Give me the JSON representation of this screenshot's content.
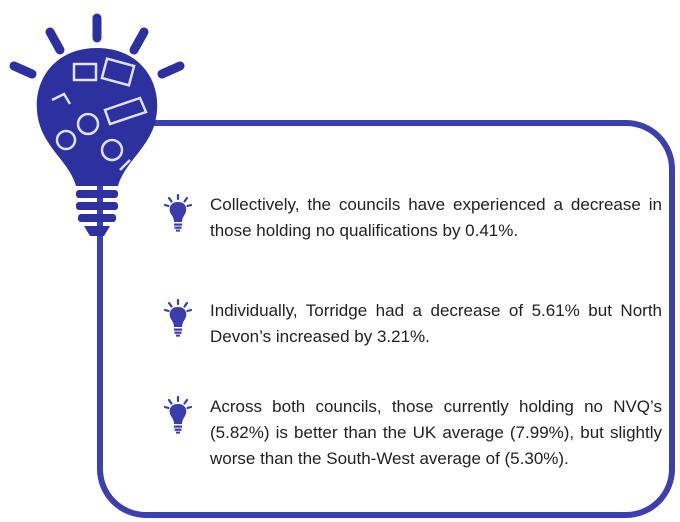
{
  "bullets": [
    "Collectively, the councils have experienced a decrease in those holding no qualifications by 0.41%.",
    "Individually, Torridge had a decrease of 5.61% but North Devon’s increased by 3.21%.",
    "Across both councils, those currently holding no NVQ’s (5.82%) is better than the UK average (7.99%), but slightly worse than the South-West average of (5.30%)."
  ]
}
